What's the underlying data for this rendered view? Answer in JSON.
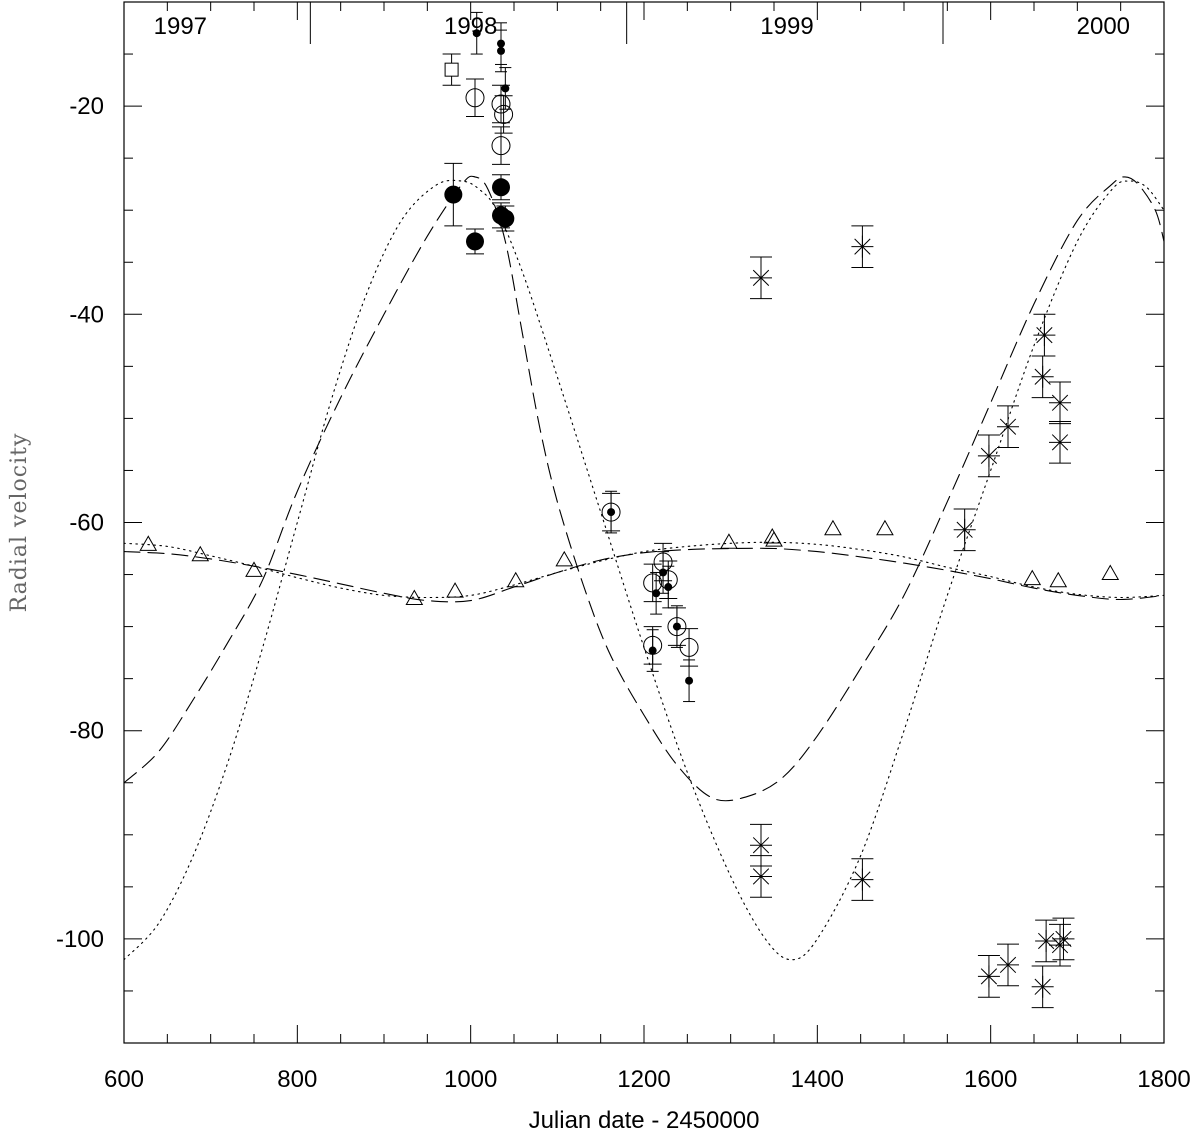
{
  "chart_data": {
    "type": "scatter",
    "title": "",
    "xlabel": "Julian date - 2450000",
    "ylabel": "Radial velocity",
    "xlim": [
      600,
      1800
    ],
    "ylim": [
      -110,
      -10
    ],
    "x_ticks": [
      600,
      800,
      1000,
      1200,
      1400,
      1600,
      1800
    ],
    "x_minor_step": 50,
    "y_ticks": [
      -20,
      -40,
      -60,
      -80,
      -100
    ],
    "y_minor_step": 5,
    "grid": false,
    "top_axis": {
      "labels": [
        {
          "text": "1997",
          "x": 665
        },
        {
          "text": "1998",
          "x": 1000
        },
        {
          "text": "1999",
          "x": 1365
        },
        {
          "text": "2000",
          "x": 1730
        }
      ],
      "year_boundaries": [
        815,
        1180,
        1545
      ]
    },
    "series": [
      {
        "name": "big-filled-circles",
        "marker": "big-filled-circle",
        "points": [
          {
            "x": 980,
            "y": -28.5,
            "err": 3.0
          },
          {
            "x": 1005,
            "y": -33.0,
            "err": 1.2
          },
          {
            "x": 1035,
            "y": -27.8,
            "err": 1.2
          },
          {
            "x": 1035,
            "y": -30.5,
            "err": 1.2
          },
          {
            "x": 1040,
            "y": -30.8,
            "err": 1.2
          }
        ]
      },
      {
        "name": "open-squares",
        "marker": "open-square",
        "points": [
          {
            "x": 978,
            "y": -16.5,
            "err": 1.5
          }
        ]
      },
      {
        "name": "open-circles",
        "marker": "open-circle",
        "points": [
          {
            "x": 1005,
            "y": -19.2,
            "err": 1.8
          },
          {
            "x": 1035,
            "y": -19.8,
            "err": 1.8
          },
          {
            "x": 1038,
            "y": -20.8,
            "err": 1.8
          },
          {
            "x": 1035,
            "y": -23.8,
            "err": 1.8
          },
          {
            "x": 1162,
            "y": -59.0,
            "err": 1.8
          },
          {
            "x": 1210,
            "y": -65.8,
            "err": 1.8
          },
          {
            "x": 1222,
            "y": -63.8,
            "err": 1.8
          },
          {
            "x": 1228,
            "y": -65.5,
            "err": 1.8
          },
          {
            "x": 1238,
            "y": -70.0,
            "err": 1.8
          },
          {
            "x": 1210,
            "y": -71.8,
            "err": 1.8
          },
          {
            "x": 1252,
            "y": -72.0,
            "err": 1.8
          }
        ]
      },
      {
        "name": "small-dots",
        "marker": "small-dot",
        "points": [
          {
            "x": 1007,
            "y": -13.0,
            "err": 2.0
          },
          {
            "x": 1035,
            "y": -14.0,
            "err": 2.0
          },
          {
            "x": 1035,
            "y": -14.7,
            "err": 2.0
          },
          {
            "x": 1040,
            "y": -18.3,
            "err": 2.0
          },
          {
            "x": 1162,
            "y": -59.0,
            "err": 2.0
          },
          {
            "x": 1214,
            "y": -66.8,
            "err": 2.0
          },
          {
            "x": 1222,
            "y": -64.8,
            "err": 2.0
          },
          {
            "x": 1228,
            "y": -66.2,
            "err": 2.0
          },
          {
            "x": 1238,
            "y": -70.0,
            "err": 2.0
          },
          {
            "x": 1210,
            "y": -72.3,
            "err": 2.0
          },
          {
            "x": 1252,
            "y": -75.2,
            "err": 2.0
          }
        ]
      },
      {
        "name": "asterisks",
        "marker": "asterisk",
        "points": [
          {
            "x": 1335,
            "y": -36.5,
            "err": 2.0
          },
          {
            "x": 1452,
            "y": -33.5,
            "err": 2.0
          },
          {
            "x": 1335,
            "y": -91.0,
            "err": 2.0
          },
          {
            "x": 1335,
            "y": -94.0,
            "err": 2.0
          },
          {
            "x": 1452,
            "y": -94.3,
            "err": 2.0
          },
          {
            "x": 1570,
            "y": -60.7,
            "err": 2.0
          },
          {
            "x": 1598,
            "y": -53.6,
            "err": 2.0
          },
          {
            "x": 1620,
            "y": -50.8,
            "err": 2.0
          },
          {
            "x": 1662,
            "y": -42.0,
            "err": 2.0
          },
          {
            "x": 1660,
            "y": -46.0,
            "err": 2.0
          },
          {
            "x": 1680,
            "y": -48.5,
            "err": 2.0
          },
          {
            "x": 1680,
            "y": -52.3,
            "err": 2.0
          },
          {
            "x": 1598,
            "y": -103.6,
            "err": 2.0
          },
          {
            "x": 1620,
            "y": -102.5,
            "err": 2.0
          },
          {
            "x": 1660,
            "y": -104.6,
            "err": 2.0
          },
          {
            "x": 1664,
            "y": -100.2,
            "err": 2.0
          },
          {
            "x": 1680,
            "y": -100.6,
            "err": 2.0
          },
          {
            "x": 1684,
            "y": -100.0,
            "err": 2.0
          }
        ]
      },
      {
        "name": "triangles",
        "marker": "open-triangle",
        "points": [
          {
            "x": 628,
            "y": -62.0
          },
          {
            "x": 688,
            "y": -63.0
          },
          {
            "x": 750,
            "y": -64.5
          },
          {
            "x": 935,
            "y": -67.2
          },
          {
            "x": 982,
            "y": -66.5
          },
          {
            "x": 1052,
            "y": -65.5
          },
          {
            "x": 1108,
            "y": -63.5
          },
          {
            "x": 1298,
            "y": -61.8
          },
          {
            "x": 1348,
            "y": -61.3
          },
          {
            "x": 1350,
            "y": -61.6
          },
          {
            "x": 1418,
            "y": -60.5
          },
          {
            "x": 1478,
            "y": -60.5
          },
          {
            "x": 1648,
            "y": -65.3
          },
          {
            "x": 1678,
            "y": -65.5
          },
          {
            "x": 1738,
            "y": -64.8
          }
        ]
      }
    ],
    "curves": [
      {
        "name": "dotted-large-orbit",
        "style": "dotted",
        "points": [
          [
            600,
            -102.0
          ],
          [
            640,
            -98.5
          ],
          [
            680,
            -92.0
          ],
          [
            720,
            -83.0
          ],
          [
            760,
            -72.0
          ],
          [
            800,
            -60.0
          ],
          [
            840,
            -48.0
          ],
          [
            880,
            -38.0
          ],
          [
            920,
            -31.0
          ],
          [
            960,
            -27.6
          ],
          [
            990,
            -27.2
          ],
          [
            1010,
            -28.0
          ],
          [
            1030,
            -30.0
          ],
          [
            1060,
            -36.0
          ],
          [
            1100,
            -46.0
          ],
          [
            1150,
            -59.0
          ],
          [
            1200,
            -72.0
          ],
          [
            1250,
            -84.0
          ],
          [
            1300,
            -94.0
          ],
          [
            1340,
            -100.0
          ],
          [
            1370,
            -102.0
          ],
          [
            1400,
            -100.0
          ],
          [
            1450,
            -92.0
          ],
          [
            1500,
            -80.0
          ],
          [
            1550,
            -67.0
          ],
          [
            1600,
            -55.0
          ],
          [
            1650,
            -43.0
          ],
          [
            1700,
            -33.0
          ],
          [
            1740,
            -28.0
          ],
          [
            1760,
            -27.2
          ],
          [
            1780,
            -27.8
          ],
          [
            1800,
            -30.0
          ]
        ]
      },
      {
        "name": "dashed-large-orbit",
        "style": "dashed",
        "points": [
          [
            600,
            -85.0
          ],
          [
            640,
            -82.0
          ],
          [
            680,
            -77.0
          ],
          [
            720,
            -71.5
          ],
          [
            760,
            -65.5
          ],
          [
            800,
            -57.0
          ],
          [
            850,
            -48.0
          ],
          [
            900,
            -40.0
          ],
          [
            950,
            -32.5
          ],
          [
            990,
            -27.5
          ],
          [
            1005,
            -26.8
          ],
          [
            1020,
            -28.0
          ],
          [
            1040,
            -33.0
          ],
          [
            1060,
            -42.0
          ],
          [
            1080,
            -51.0
          ],
          [
            1100,
            -58.0
          ],
          [
            1130,
            -66.0
          ],
          [
            1160,
            -72.5
          ],
          [
            1200,
            -78.5
          ],
          [
            1240,
            -83.5
          ],
          [
            1280,
            -86.5
          ],
          [
            1320,
            -86.3
          ],
          [
            1360,
            -84.5
          ],
          [
            1400,
            -80.5
          ],
          [
            1450,
            -74.0
          ],
          [
            1500,
            -67.0
          ],
          [
            1550,
            -58.0
          ],
          [
            1600,
            -48.5
          ],
          [
            1650,
            -39.0
          ],
          [
            1700,
            -31.0
          ],
          [
            1740,
            -27.5
          ],
          [
            1755,
            -26.8
          ],
          [
            1770,
            -27.5
          ],
          [
            1790,
            -30.0
          ],
          [
            1800,
            -33.0
          ]
        ]
      },
      {
        "name": "dotted-small-orbit",
        "style": "dotted",
        "points": [
          [
            600,
            -62.0
          ],
          [
            650,
            -62.3
          ],
          [
            700,
            -63.2
          ],
          [
            750,
            -64.2
          ],
          [
            800,
            -65.3
          ],
          [
            850,
            -66.3
          ],
          [
            900,
            -67.0
          ],
          [
            950,
            -67.2
          ],
          [
            1000,
            -67.0
          ],
          [
            1050,
            -66.0
          ],
          [
            1100,
            -64.8
          ],
          [
            1150,
            -63.7
          ],
          [
            1200,
            -62.8
          ],
          [
            1250,
            -62.3
          ],
          [
            1300,
            -62.0
          ],
          [
            1350,
            -61.9
          ],
          [
            1400,
            -62.1
          ],
          [
            1450,
            -62.6
          ],
          [
            1500,
            -63.3
          ],
          [
            1550,
            -64.3
          ],
          [
            1600,
            -65.2
          ],
          [
            1650,
            -66.2
          ],
          [
            1700,
            -66.9
          ],
          [
            1750,
            -67.2
          ],
          [
            1800,
            -67.0
          ]
        ]
      },
      {
        "name": "dashed-small-orbit",
        "style": "dashed",
        "points": [
          [
            600,
            -62.8
          ],
          [
            650,
            -63.0
          ],
          [
            700,
            -63.5
          ],
          [
            750,
            -64.2
          ],
          [
            800,
            -65.0
          ],
          [
            850,
            -65.9
          ],
          [
            900,
            -66.8
          ],
          [
            950,
            -67.5
          ],
          [
            1000,
            -67.5
          ],
          [
            1050,
            -66.2
          ],
          [
            1100,
            -64.8
          ],
          [
            1150,
            -63.6
          ],
          [
            1200,
            -62.9
          ],
          [
            1250,
            -62.6
          ],
          [
            1300,
            -62.5
          ],
          [
            1350,
            -62.5
          ],
          [
            1400,
            -62.8
          ],
          [
            1450,
            -63.3
          ],
          [
            1500,
            -63.9
          ],
          [
            1550,
            -64.6
          ],
          [
            1600,
            -65.4
          ],
          [
            1650,
            -66.3
          ],
          [
            1700,
            -67.0
          ],
          [
            1750,
            -67.4
          ],
          [
            1800,
            -67.0
          ]
        ]
      }
    ]
  }
}
